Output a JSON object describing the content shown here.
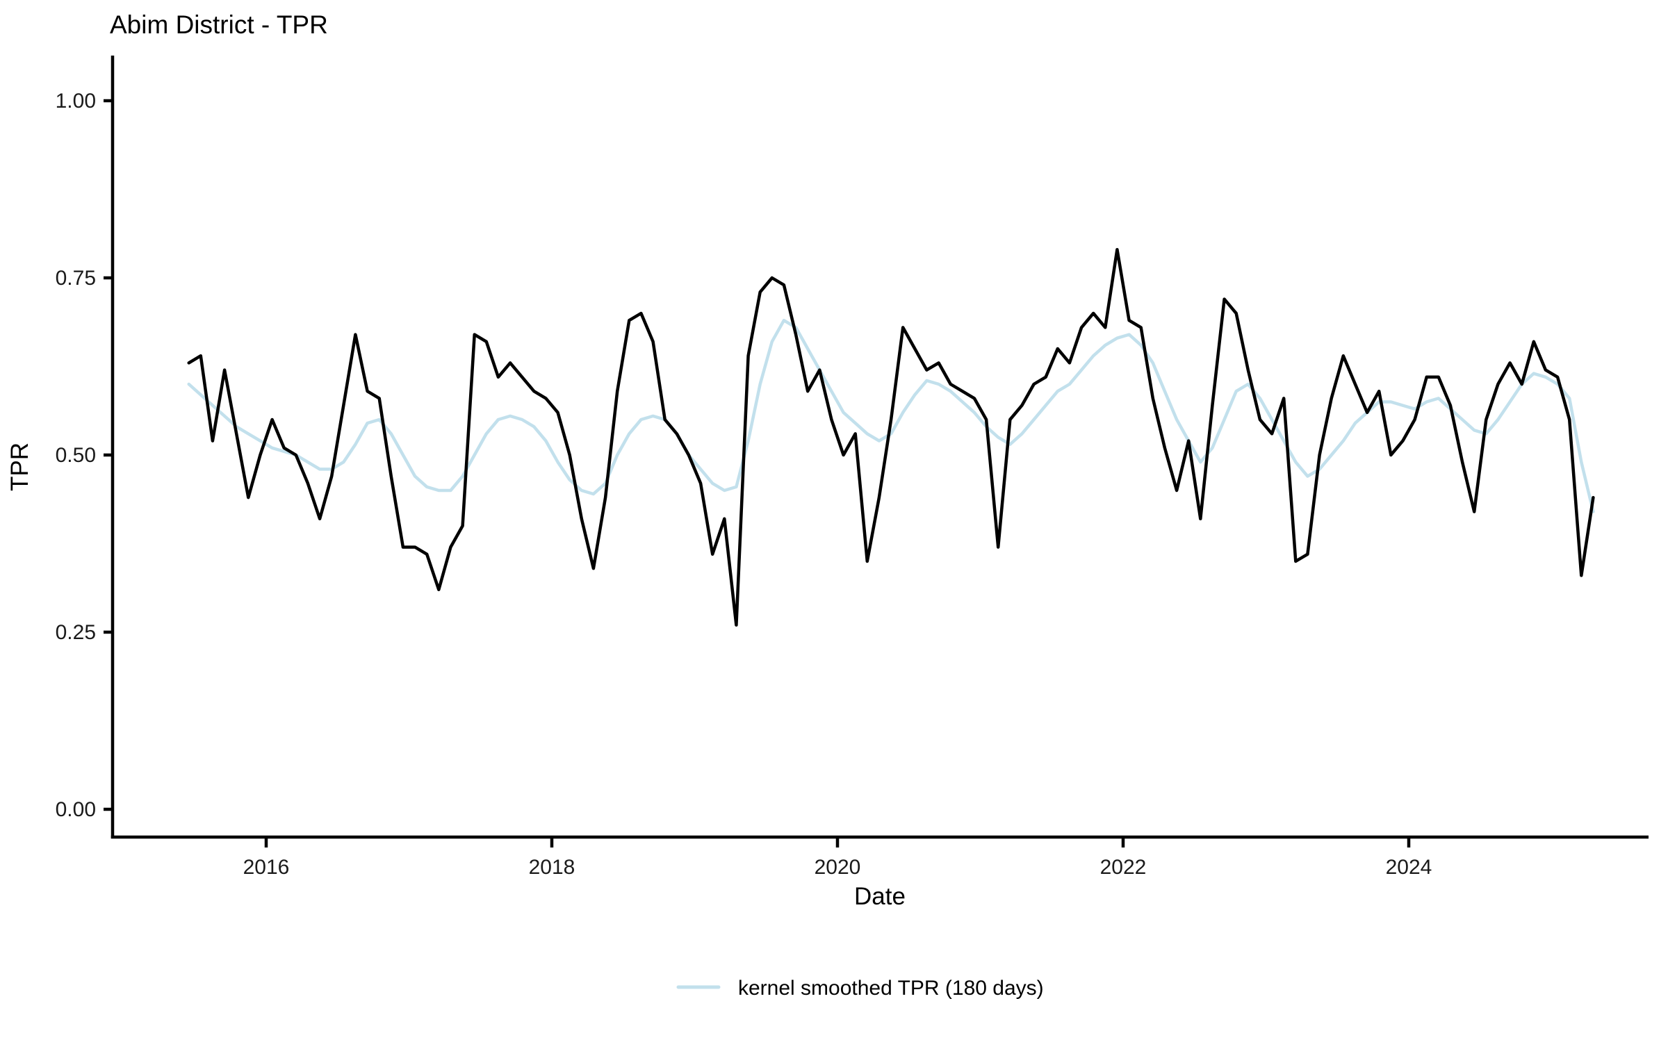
{
  "title": "Abim District - TPR",
  "axes": {
    "x_label": "Date",
    "y_label": "TPR",
    "y_ticks": [
      {
        "value": 0.0,
        "label": "0.00"
      },
      {
        "value": 0.25,
        "label": "0.25"
      },
      {
        "value": 0.5,
        "label": "0.50"
      },
      {
        "value": 0.75,
        "label": "0.75"
      },
      {
        "value": 1.0,
        "label": "1.00"
      }
    ],
    "x_ticks": [
      {
        "year": 2016,
        "label": "2016"
      },
      {
        "year": 2018,
        "label": "2018"
      },
      {
        "year": 2020,
        "label": "2020"
      },
      {
        "year": 2022,
        "label": "2022"
      },
      {
        "year": 2024,
        "label": "2024"
      }
    ]
  },
  "legend": {
    "label": "kernel smoothed TPR (180 days)",
    "swatch_color": "#C2E0EC"
  },
  "colors": {
    "raw_line": "#000000",
    "smoothed_line": "#C2E0EC",
    "axis": "#000000"
  },
  "chart_data": {
    "type": "line",
    "title": "Abim District - TPR",
    "xlabel": "Date",
    "ylabel": "TPR",
    "ylim": [
      0,
      1.0
    ],
    "y_tick_values": [
      0,
      0.25,
      0.5,
      0.75,
      1.0
    ],
    "x_tick_years": [
      2016,
      2018,
      2020,
      2022,
      2024
    ],
    "x_unit": "month",
    "start_month": "2015-06",
    "end_month": "2025-04",
    "grid": false,
    "legend_position": "bottom",
    "series": [
      {
        "name": "TPR",
        "color": "#000000",
        "values": [
          0.63,
          0.64,
          0.52,
          0.62,
          0.53,
          0.44,
          0.5,
          0.55,
          0.51,
          0.5,
          0.46,
          0.41,
          0.47,
          0.57,
          0.67,
          0.59,
          0.58,
          0.47,
          0.37,
          0.37,
          0.36,
          0.31,
          0.37,
          0.4,
          0.67,
          0.66,
          0.61,
          0.63,
          0.61,
          0.59,
          0.58,
          0.56,
          0.5,
          0.41,
          0.34,
          0.44,
          0.59,
          0.69,
          0.7,
          0.66,
          0.55,
          0.53,
          0.5,
          0.46,
          0.36,
          0.41,
          0.26,
          0.64,
          0.73,
          0.75,
          0.74,
          0.67,
          0.59,
          0.62,
          0.55,
          0.5,
          0.53,
          0.35,
          0.44,
          0.55,
          0.68,
          0.65,
          0.62,
          0.63,
          0.6,
          0.59,
          0.58,
          0.55,
          0.37,
          0.55,
          0.57,
          0.6,
          0.61,
          0.65,
          0.63,
          0.68,
          0.7,
          0.68,
          0.79,
          0.69,
          0.68,
          0.58,
          0.51,
          0.45,
          0.52,
          0.41,
          0.57,
          0.72,
          0.7,
          0.62,
          0.55,
          0.53,
          0.58,
          0.35,
          0.36,
          0.5,
          0.58,
          0.64,
          0.6,
          0.56,
          0.59,
          0.5,
          0.52,
          0.55,
          0.61,
          0.61,
          0.57,
          0.49,
          0.42,
          0.55,
          0.6,
          0.63,
          0.6,
          0.66,
          0.62,
          0.61,
          0.55,
          0.33,
          0.44
        ]
      },
      {
        "name": "kernel smoothed TPR (180 days)",
        "color": "#C2E0EC",
        "values": [
          0.6,
          0.585,
          0.57,
          0.555,
          0.54,
          0.53,
          0.52,
          0.51,
          0.505,
          0.5,
          0.49,
          0.48,
          0.48,
          0.49,
          0.515,
          0.545,
          0.55,
          0.53,
          0.5,
          0.47,
          0.455,
          0.45,
          0.45,
          0.47,
          0.5,
          0.53,
          0.55,
          0.555,
          0.55,
          0.54,
          0.52,
          0.49,
          0.465,
          0.45,
          0.445,
          0.46,
          0.5,
          0.53,
          0.55,
          0.555,
          0.55,
          0.53,
          0.5,
          0.48,
          0.46,
          0.45,
          0.455,
          0.52,
          0.6,
          0.66,
          0.69,
          0.68,
          0.65,
          0.62,
          0.59,
          0.56,
          0.545,
          0.53,
          0.52,
          0.53,
          0.56,
          0.585,
          0.605,
          0.6,
          0.59,
          0.575,
          0.56,
          0.54,
          0.525,
          0.515,
          0.53,
          0.55,
          0.57,
          0.59,
          0.6,
          0.62,
          0.64,
          0.655,
          0.665,
          0.67,
          0.655,
          0.63,
          0.59,
          0.55,
          0.52,
          0.49,
          0.51,
          0.55,
          0.59,
          0.6,
          0.58,
          0.55,
          0.52,
          0.49,
          0.47,
          0.48,
          0.5,
          0.52,
          0.545,
          0.56,
          0.575,
          0.575,
          0.57,
          0.565,
          0.575,
          0.58,
          0.565,
          0.55,
          0.535,
          0.53,
          0.55,
          0.575,
          0.6,
          0.615,
          0.61,
          0.6,
          0.58,
          0.49,
          0.42
        ]
      }
    ]
  }
}
